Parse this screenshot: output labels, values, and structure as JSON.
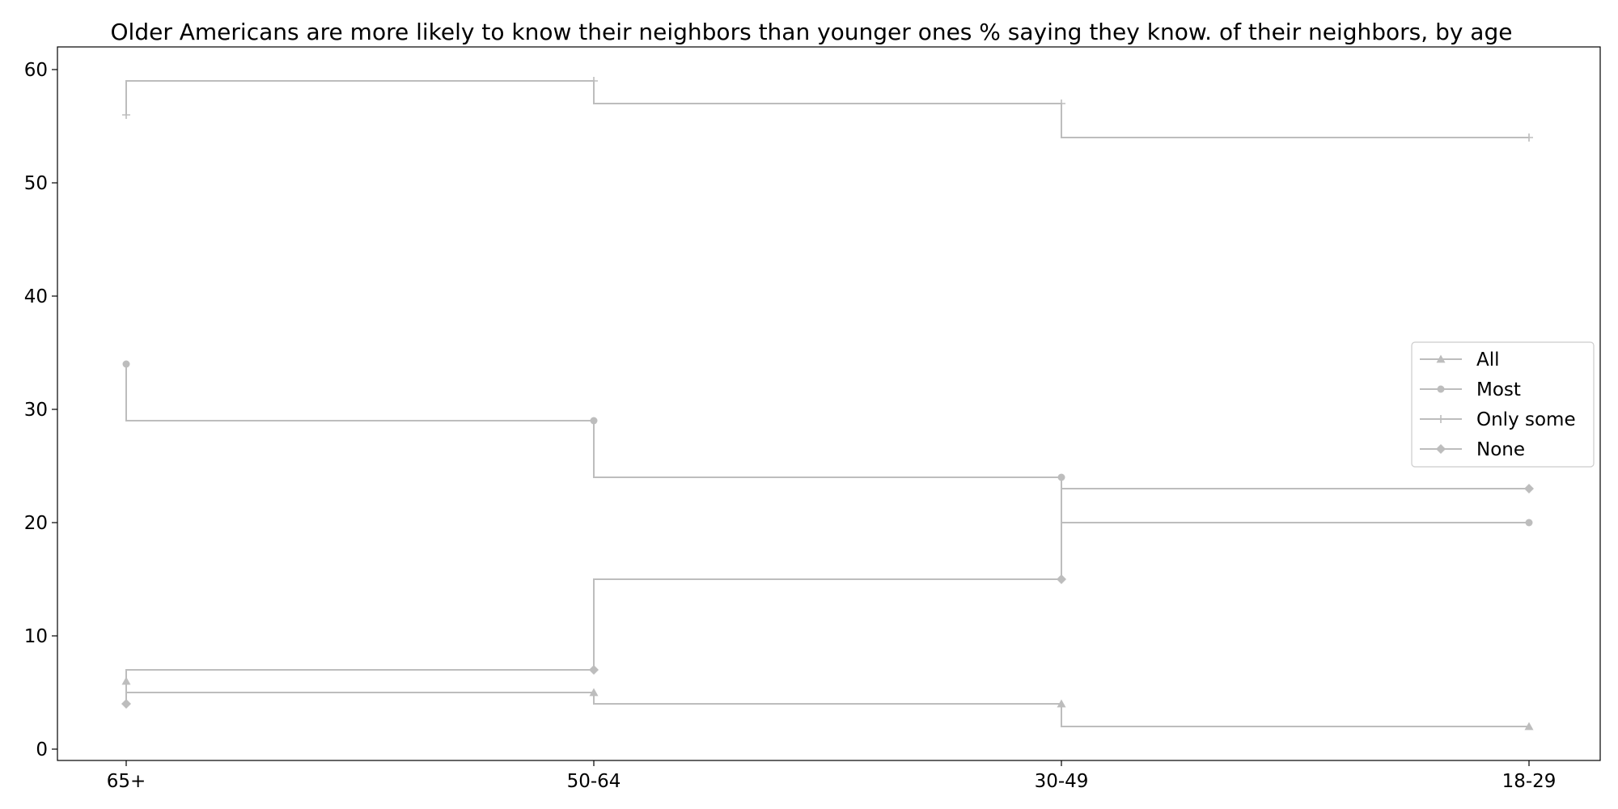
{
  "chart_data": {
    "type": "line",
    "step": "pre",
    "title": "Older Americans are more likely to know their neighbors than younger ones % saying they know. of their neighbors, by age",
    "xlabel": "",
    "ylabel": "",
    "categories": [
      "65+",
      "50-64",
      "30-49",
      "18-29"
    ],
    "ylim": [
      -1,
      62
    ],
    "yticks": [
      0,
      10,
      20,
      30,
      40,
      50,
      60
    ],
    "grid": false,
    "legend_position": "center-right",
    "series": [
      {
        "name": "All",
        "marker": "triangle",
        "color": "#bdbdbd",
        "values": [
          6,
          5,
          4,
          2
        ]
      },
      {
        "name": "Most",
        "marker": "circle",
        "color": "#bdbdbd",
        "values": [
          34,
          29,
          24,
          20
        ]
      },
      {
        "name": "Only some",
        "marker": "plus",
        "color": "#bdbdbd",
        "values": [
          56,
          59,
          57,
          54
        ]
      },
      {
        "name": "None",
        "marker": "diamond",
        "color": "#bdbdbd",
        "values": [
          4,
          7,
          15,
          23
        ]
      }
    ]
  }
}
